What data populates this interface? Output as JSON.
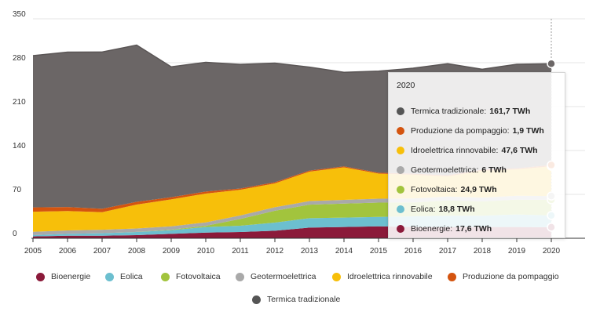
{
  "chart_data": {
    "type": "area",
    "stacked": true,
    "x": [
      2005,
      2006,
      2007,
      2008,
      2009,
      2010,
      2011,
      2012,
      2013,
      2014,
      2015,
      2016,
      2017,
      2018,
      2019,
      2020
    ],
    "ylim": [
      0,
      350
    ],
    "yticks": [
      0,
      70,
      140,
      210,
      280,
      350
    ],
    "series": [
      {
        "name": "Bioenergie",
        "color": "#8b1a3a",
        "values": [
          3,
          4,
          4,
          5,
          7,
          9,
          10,
          12,
          17,
          18,
          19,
          18,
          18,
          18,
          18,
          17.6
        ]
      },
      {
        "name": "Eolica",
        "color": "#6cbfcf",
        "values": [
          2,
          3,
          4,
          5,
          6,
          9,
          10,
          13,
          15,
          15,
          15,
          17,
          18,
          18,
          20,
          18.8
        ]
      },
      {
        "name": "Fotovoltaica",
        "color": "#a2c43d",
        "values": [
          0,
          0,
          0,
          0.2,
          0.7,
          1.9,
          10.8,
          18.9,
          21.6,
          22.3,
          22.9,
          22.1,
          24.4,
          22.7,
          23.7,
          24.9
        ]
      },
      {
        "name": "Geotermoelettrica",
        "color": "#a9a9a9",
        "values": [
          5.3,
          5.5,
          5.6,
          5.5,
          5.3,
          5.4,
          5.6,
          5.6,
          5.7,
          5.9,
          6.2,
          6.3,
          6.2,
          6.1,
          6.1,
          6
        ]
      },
      {
        "name": "Idroelettrica rinnovabile",
        "color": "#f7bf0a",
        "values": [
          32,
          31,
          28,
          38,
          43,
          46,
          41,
          38,
          47,
          52,
          40,
          38,
          32,
          43,
          42,
          47.6
        ]
      },
      {
        "name": "Produzione da pompaggio",
        "color": "#d4540f",
        "values": [
          6.9,
          6.4,
          5.5,
          4.4,
          3.5,
          3.3,
          1.9,
          1.9,
          1.7,
          1.5,
          1.4,
          1.8,
          1.8,
          1.8,
          1.7,
          1.9
        ]
      },
      {
        "name": "Termica tradizionale",
        "color": "#6b6666",
        "values": [
          242,
          247,
          250,
          250,
          208,
          206,
          198,
          190,
          165,
          150,
          162,
          168,
          178,
          160,
          166,
          161.7
        ]
      }
    ],
    "tooltip": {
      "title": "2020",
      "rows": [
        {
          "label": "Termica tradizionale:",
          "value": "161,7 TWh",
          "color": "#555555"
        },
        {
          "label": "Produzione da pompaggio:",
          "value": "1,9 TWh",
          "color": "#d4540f"
        },
        {
          "label": "Idroelettrica rinnovabile:",
          "value": "47,6 TWh",
          "color": "#f7bf0a"
        },
        {
          "label": "Geotermoelettrica:",
          "value": "6 TWh",
          "color": "#a9a9a9"
        },
        {
          "label": "Fotovoltaica:",
          "value": "24,9 TWh",
          "color": "#a2c43d"
        },
        {
          "label": "Eolica:",
          "value": "18,8 TWh",
          "color": "#6cbfcf"
        },
        {
          "label": "Bioenergie:",
          "value": "17,6 TWh",
          "color": "#8b1a3a"
        }
      ]
    },
    "legend": [
      {
        "label": "Bioenergie",
        "color": "#8b1a3a"
      },
      {
        "label": "Eolica",
        "color": "#6cbfcf"
      },
      {
        "label": "Fotovoltaica",
        "color": "#a2c43d"
      },
      {
        "label": "Geotermoelettrica",
        "color": "#a9a9a9"
      },
      {
        "label": "Idroelettrica rinnovabile",
        "color": "#f7bf0a"
      },
      {
        "label": "Produzione da pompaggio",
        "color": "#d4540f"
      },
      {
        "label": "Termica tradizionale",
        "color": "#555555"
      }
    ],
    "grid": true,
    "legend_position": "bottom",
    "highlighted_x": 2020
  }
}
